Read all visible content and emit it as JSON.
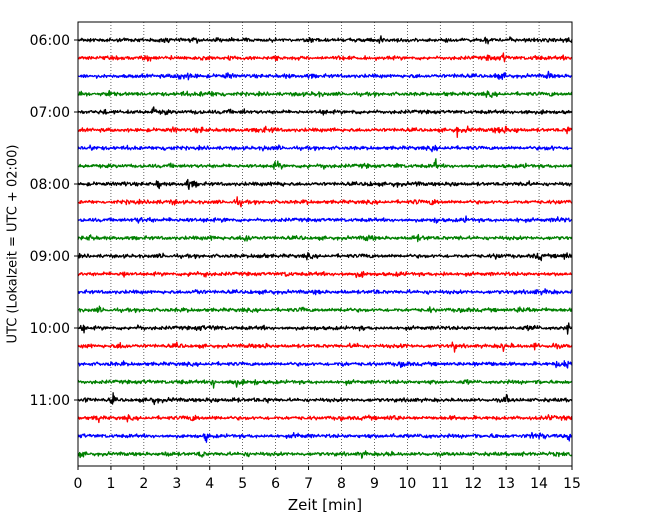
{
  "chart_data": {
    "type": "line",
    "title": "",
    "xlabel": "Zeit  [min]",
    "ylabel": "UTC (Lokalzeit = UTC + 02:00)",
    "xlim": [
      0,
      15
    ],
    "x_ticks": [
      0,
      1,
      2,
      3,
      4,
      5,
      6,
      7,
      8,
      9,
      10,
      11,
      12,
      13,
      14,
      15
    ],
    "y_tick_labels": [
      "06:00",
      "07:00",
      "08:00",
      "09:00",
      "10:00",
      "11:00"
    ],
    "y_tick_traces": [
      0,
      4,
      8,
      12,
      16,
      20
    ],
    "trace_count": 24,
    "trace_interval_minutes": 15,
    "first_trace": "06:00",
    "last_trace": "11:45",
    "colors": [
      "#000000",
      "#ff0000",
      "#0000ff",
      "#008000"
    ],
    "x_grid": "dotted vertical lines at every minute",
    "y_grid": false,
    "legend": "none",
    "notable_events": [
      {
        "trace": "06:00",
        "minute": 9.15
      },
      {
        "trace": "06:00",
        "minute": 12.45
      },
      {
        "trace": "06:15",
        "minute": 12.95
      },
      {
        "trace": "06:30",
        "minute": 14.3
      },
      {
        "trace": "06:45",
        "minute": 0.95
      },
      {
        "trace": "07:00",
        "minute": 2.3
      },
      {
        "trace": "07:15",
        "minute": 11.5
      },
      {
        "trace": "07:15",
        "minute": 14.9
      },
      {
        "trace": "07:45",
        "minute": 10.85
      },
      {
        "trace": "08:00",
        "minute": 3.35
      },
      {
        "trace": "08:00",
        "minute": 2.45
      },
      {
        "trace": "09:15",
        "minute": 1.4
      },
      {
        "trace": "09:15",
        "minute": 3.9
      },
      {
        "trace": "10:00",
        "minute": 0.15
      },
      {
        "trace": "10:00",
        "minute": 14.85
      },
      {
        "trace": "10:15",
        "minute": 11.4
      },
      {
        "trace": "10:15",
        "minute": 12.9
      },
      {
        "trace": "10:15",
        "minute": 13.9
      },
      {
        "trace": "10:30",
        "minute": 14.9
      },
      {
        "trace": "10:45",
        "minute": 4.1
      },
      {
        "trace": "11:00",
        "minute": 1.05
      },
      {
        "trace": "11:00",
        "minute": 13.0
      },
      {
        "trace": "11:15",
        "minute": 0.6
      },
      {
        "trace": "11:30",
        "minute": 3.9
      },
      {
        "trace": "11:30",
        "minute": 14.9
      },
      {
        "trace": "11:45",
        "minute": 3.75
      }
    ]
  }
}
